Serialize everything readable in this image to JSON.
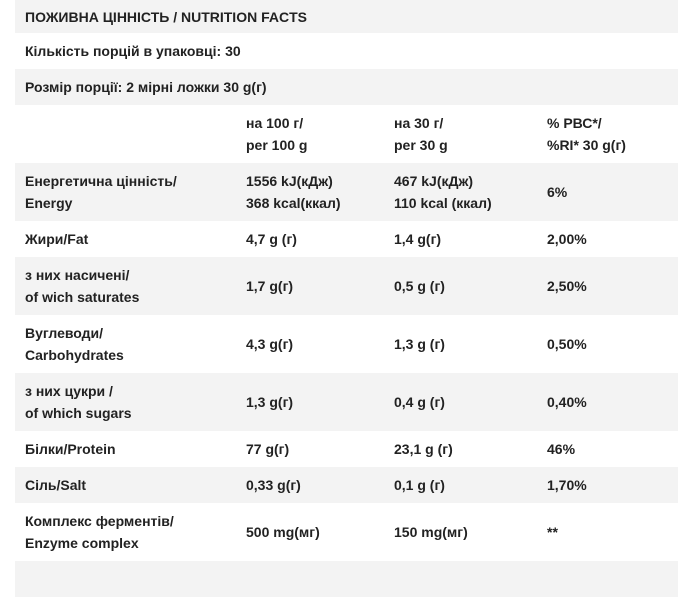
{
  "title": "ПОЖИВНА ЦІННІСТЬ / NUTRITION FACTS",
  "servings_per_package": "Кількість порцій в упаковці: 30",
  "serving_size": "Розмір порції: 2 мірні ложки 30 g(г)",
  "header": {
    "col2": [
      "на 100 г/",
      "per 100 g"
    ],
    "col3": [
      "на 30 г/",
      "per 30 g"
    ],
    "col4": [
      "% РВС*/",
      "%RI* 30 g(г)"
    ]
  },
  "rows": [
    {
      "name": [
        "Енергетична цінність/",
        "Energy"
      ],
      "per100": [
        "1556 kJ(кДж)",
        "368 kcal(ккал)"
      ],
      "per30": [
        "467 kJ(кДж)",
        "110 kcal (ккал)"
      ],
      "ri": [
        "6%"
      ]
    },
    {
      "name": [
        "Жири/Fat"
      ],
      "per100": [
        "4,7 g (г)"
      ],
      "per30": [
        "1,4 g(г)"
      ],
      "ri": [
        "2,00%"
      ]
    },
    {
      "name": [
        "з них насичені/",
        "of wich saturates"
      ],
      "per100": [
        "1,7 g(г)"
      ],
      "per30": [
        "0,5 g (г)"
      ],
      "ri": [
        "2,50%"
      ]
    },
    {
      "name": [
        "Вуглеводи/",
        "Carbohydrates"
      ],
      "per100": [
        "4,3 g(г)"
      ],
      "per30": [
        "1,3 g (г)"
      ],
      "ri": [
        "0,50%"
      ]
    },
    {
      "name": [
        "з них цукри /",
        "of which sugars"
      ],
      "per100": [
        "1,3 g(г)"
      ],
      "per30": [
        "0,4 g (г)"
      ],
      "ri": [
        "0,40%"
      ]
    },
    {
      "name": [
        "Білки/Protein"
      ],
      "per100": [
        "77 g(г)"
      ],
      "per30": [
        "23,1 g (г)"
      ],
      "ri": [
        "46%"
      ]
    },
    {
      "name": [
        "Сіль/Salt"
      ],
      "per100": [
        "0,33 g(г)"
      ],
      "per30": [
        "0,1 g (г)"
      ],
      "ri": [
        "1,70%"
      ]
    },
    {
      "name": [
        "Комплекс ферментів/",
        "Enzyme complex"
      ],
      "per100": [
        "500 mg(мг)"
      ],
      "per30": [
        "150 mg(мг)"
      ],
      "ri": [
        "**"
      ]
    }
  ]
}
